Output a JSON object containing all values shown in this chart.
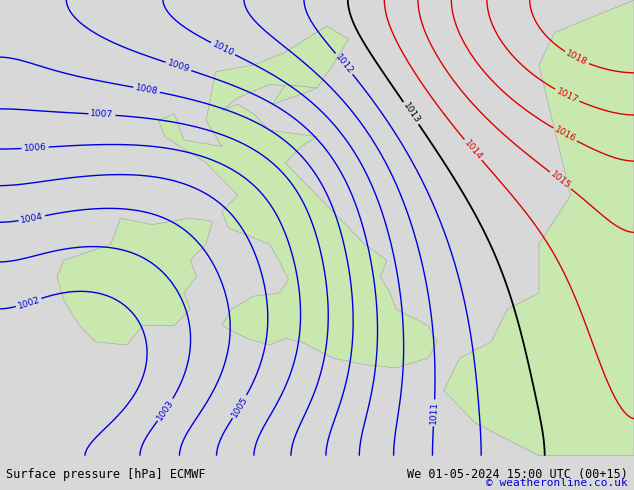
{
  "title_left": "Surface pressure [hPa] ECMWF",
  "title_right": "We 01-05-2024 15:00 UTC (00+15)",
  "copyright": "© weatheronline.co.uk",
  "bg_color": "#d8d8d8",
  "land_color": "#c8e8b0",
  "footer_bg": "#e8e8e8",
  "blue_color": "#0000dd",
  "red_color": "#dd0000",
  "black_color": "#000000",
  "pressure_min": 1000,
  "pressure_max": 1020,
  "figsize": [
    6.34,
    4.9
  ],
  "dpi": 100
}
